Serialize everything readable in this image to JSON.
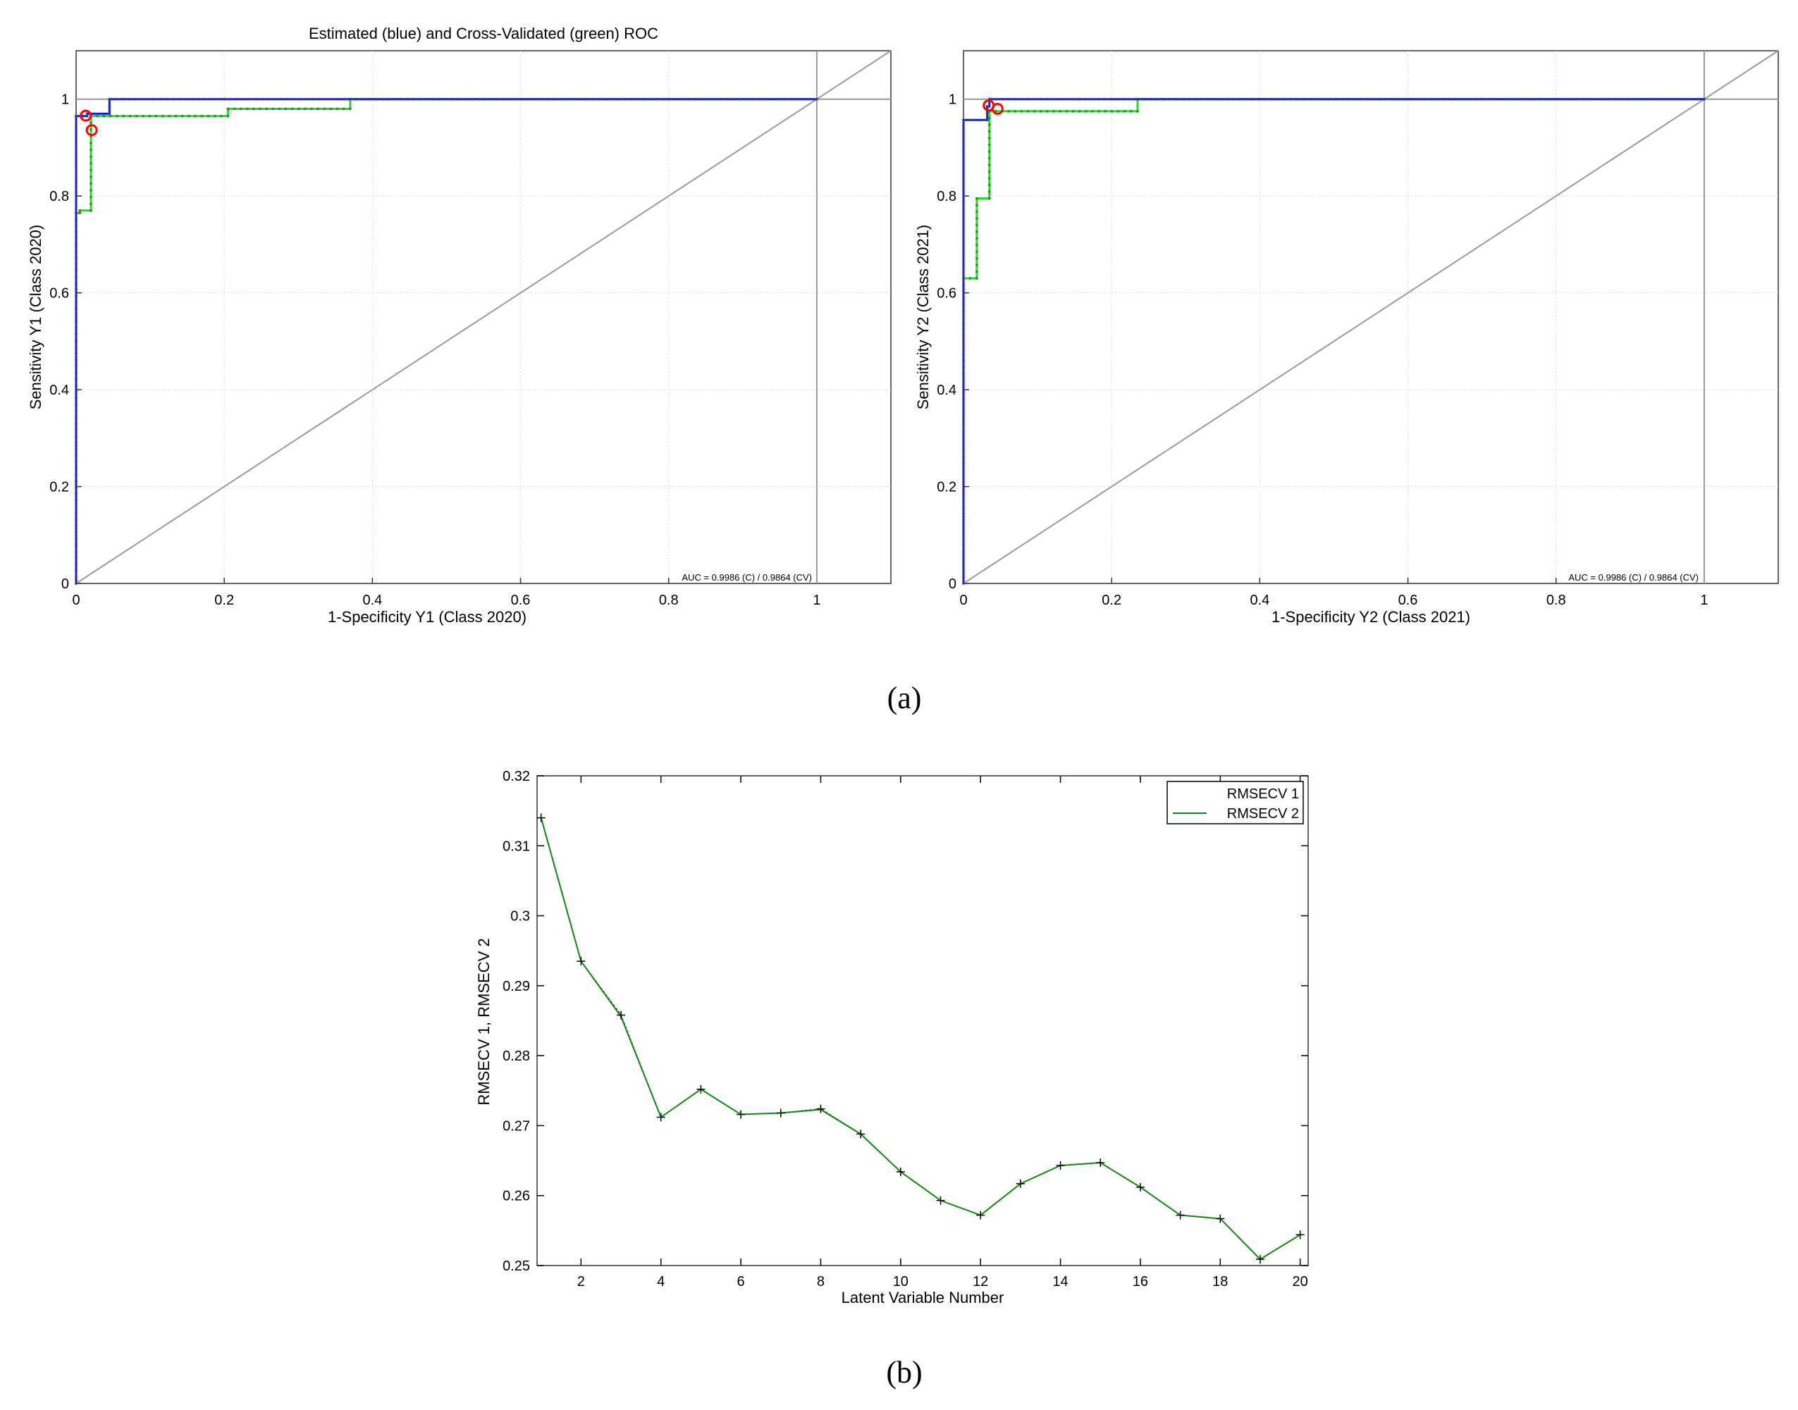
{
  "panel_labels": {
    "a": "(a)",
    "b": "(b)"
  },
  "chart_data": [
    {
      "type": "line",
      "title": "Estimated (blue) and Cross-Validated (green) ROC",
      "xlabel": "1-Specificity Y1 (Class 2020)",
      "ylabel": "Sensitivity Y1 (Class 2020)",
      "xlim": [
        0,
        1.1
      ],
      "ylim": [
        0,
        1.1
      ],
      "xticks": [
        0,
        0.2,
        0.4,
        0.6,
        0.8,
        1
      ],
      "yticks": [
        0,
        0.2,
        0.4,
        0.6,
        0.8,
        1
      ],
      "xtick_labels": [
        "0",
        "0.2",
        "0.4",
        "0.6",
        "0.8",
        "1"
      ],
      "ytick_labels": [
        "0",
        "0.2",
        "0.4",
        "0.6",
        "0.8",
        "1"
      ],
      "grid": true,
      "annotation": "AUC = 0.9986 (C) / 0.9864 (CV)",
      "colors": {
        "estimated": "#1a1adc",
        "cross_validated": "#22dd22",
        "reference": "#9a9a9a",
        "operating_point": "#ff0000"
      },
      "series": [
        {
          "x": [
            0,
            0,
            0.015,
            0.015,
            0.045,
            0.045,
            1
          ],
          "y": [
            0,
            0.965,
            0.965,
            0.97,
            0.97,
            1,
            1
          ]
        },
        {
          "x": [
            0,
            0,
            0.005,
            0.005,
            0.02,
            0.02,
            0.205,
            0.205,
            0.37,
            0.37,
            1
          ],
          "y": [
            0,
            0.765,
            0.765,
            0.77,
            0.77,
            0.965,
            0.965,
            0.98,
            0.98,
            1,
            1
          ]
        }
      ],
      "operating_points": [
        {
          "x": 0.013,
          "y": 0.966
        },
        {
          "x": 0.021,
          "y": 0.936
        }
      ],
      "reference_lines": {
        "vertical_x": 1,
        "horizontal_y": 1,
        "diagonal": true
      }
    },
    {
      "type": "line",
      "title": "",
      "xlabel": "1-Specificity Y2 (Class 2021)",
      "ylabel": "Sensitivity Y2 (Class 2021)",
      "xlim": [
        0,
        1.1
      ],
      "ylim": [
        0,
        1.1
      ],
      "xticks": [
        0,
        0.2,
        0.4,
        0.6,
        0.8,
        1
      ],
      "yticks": [
        0,
        0.2,
        0.4,
        0.6,
        0.8,
        1
      ],
      "xtick_labels": [
        "0",
        "0.2",
        "0.4",
        "0.6",
        "0.8",
        "1"
      ],
      "ytick_labels": [
        "0",
        "0.2",
        "0.4",
        "0.6",
        "0.8",
        "1"
      ],
      "grid": true,
      "annotation": "AUC = 0.9986 (C) / 0.9864 (CV)",
      "colors": {
        "estimated": "#1a1adc",
        "cross_validated": "#22dd22",
        "reference": "#9a9a9a",
        "operating_point": "#ff0000"
      },
      "series": [
        {
          "x": [
            0,
            0,
            0.032,
            0.032,
            0.035,
            0.035,
            1
          ],
          "y": [
            0,
            0.957,
            0.957,
            0.985,
            0.985,
            1,
            1
          ]
        },
        {
          "x": [
            0,
            0,
            0.018,
            0.018,
            0.035,
            0.035,
            0.235,
            0.235,
            1
          ],
          "y": [
            0,
            0.63,
            0.63,
            0.795,
            0.795,
            0.975,
            0.975,
            1,
            1
          ]
        }
      ],
      "operating_points": [
        {
          "x": 0.034,
          "y": 0.987
        },
        {
          "x": 0.046,
          "y": 0.98
        }
      ],
      "reference_lines": {
        "vertical_x": 1,
        "horizontal_y": 1,
        "diagonal": true
      }
    },
    {
      "type": "line",
      "title": "",
      "xlabel": "Latent Variable Number",
      "ylabel": "RMSECV 1, RMSECV 2",
      "xlim": [
        0.9,
        20.2
      ],
      "ylim": [
        0.25,
        0.32
      ],
      "xticks": [
        2,
        4,
        6,
        8,
        10,
        12,
        14,
        16,
        18,
        20
      ],
      "yticks": [
        0.25,
        0.26,
        0.27,
        0.28,
        0.29,
        0.3,
        0.31,
        0.32
      ],
      "xtick_labels": [
        "2",
        "4",
        "6",
        "8",
        "10",
        "12",
        "14",
        "16",
        "18",
        "20"
      ],
      "ytick_labels": [
        "0.25",
        "0.26",
        "0.27",
        "0.28",
        "0.29",
        "0.3",
        "0.31",
        "0.32"
      ],
      "grid": false,
      "legend": {
        "position": "top-right",
        "entries": [
          "RMSECV 1",
          "RMSECV 2"
        ]
      },
      "colors": {
        "RMSECV 1": "#000000",
        "RMSECV 2": "#118811"
      },
      "x": [
        1,
        2,
        3,
        4,
        5,
        6,
        7,
        8,
        9,
        10,
        11,
        12,
        13,
        14,
        15,
        16,
        17,
        18,
        19,
        20
      ],
      "series": [
        {
          "name": "RMSECV 1",
          "values": [
            0.314,
            0.2935,
            0.2858,
            0.2712,
            0.2752,
            0.2716,
            0.2718,
            0.2724,
            0.2688,
            0.2634,
            0.2593,
            0.2572,
            0.2617,
            0.2643,
            0.2647,
            0.2612,
            0.2572,
            0.2567,
            0.2509,
            0.2544
          ]
        },
        {
          "name": "RMSECV 2",
          "values": [
            0.314,
            0.2935,
            0.2856,
            0.2712,
            0.2752,
            0.2716,
            0.2718,
            0.2723,
            0.2688,
            0.2634,
            0.2593,
            0.2572,
            0.2617,
            0.2643,
            0.2647,
            0.2612,
            0.2572,
            0.2567,
            0.2509,
            0.2544
          ]
        }
      ]
    }
  ]
}
